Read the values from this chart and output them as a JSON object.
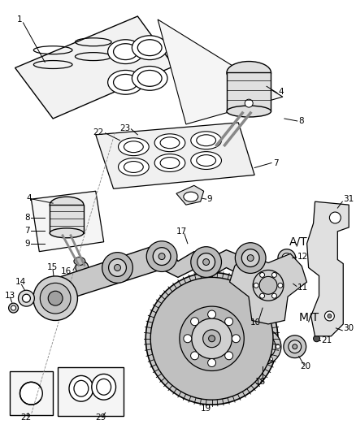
{
  "bg_color": "#ffffff",
  "fig_width": 4.38,
  "fig_height": 5.33,
  "dpi": 100,
  "lw": 0.8,
  "label_fontsize": 7.5
}
